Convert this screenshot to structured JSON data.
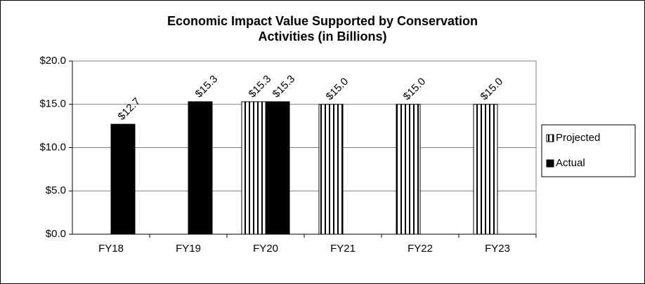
{
  "chart_data": {
    "type": "bar",
    "title": "Economic Impact Value Supported by Conservation Activities (in Billions)",
    "categories": [
      "FY18",
      "FY19",
      "FY20",
      "FY21",
      "FY22",
      "FY23"
    ],
    "series": [
      {
        "name": "Projected",
        "color": "#000000",
        "values": [
          null,
          null,
          15.3,
          15.0,
          15.0,
          15.0
        ],
        "value_labels": [
          null,
          null,
          "$15.3",
          "$15.0",
          "$15.0",
          "$15.0"
        ]
      },
      {
        "name": "Actual",
        "color": "#000000",
        "values": [
          12.7,
          15.3,
          15.3,
          null,
          null,
          null
        ],
        "value_labels": [
          "$12.7",
          "$15.3",
          "$15.3",
          null,
          null,
          null
        ]
      }
    ],
    "ylim": [
      0,
      20
    ],
    "yticks": [
      {
        "value": 0,
        "label": "$0.0"
      },
      {
        "value": 5,
        "label": "$5.0"
      },
      {
        "value": 10,
        "label": "$10.0"
      },
      {
        "value": 15,
        "label": "$15.0"
      },
      {
        "value": 20,
        "label": "$20.0"
      }
    ],
    "grid": true,
    "legend": "right"
  }
}
